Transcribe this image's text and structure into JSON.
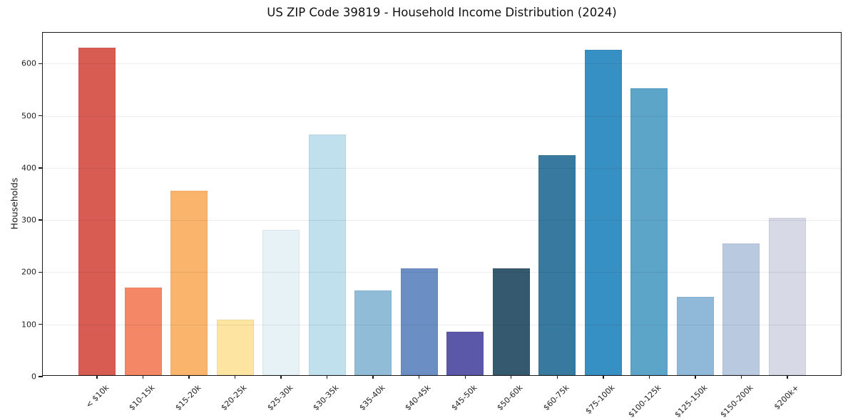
{
  "figure": {
    "background": "#ffffff"
  },
  "chart_data": {
    "type": "bar",
    "title": "US ZIP Code 39819 - Household Income Distribution (2024)",
    "xlabel": "",
    "ylabel": "Households",
    "categories": [
      "< $10k",
      "$10-15k",
      "$15-20k",
      "$20-25k",
      "$25-30k",
      "$30-35k",
      "$35-40k",
      "$40-45k",
      "$45-50k",
      "$50-60k",
      "$60-75k",
      "$75-100k",
      "$100-125k",
      "$125-150k",
      "$150-200k",
      "$200k+"
    ],
    "values": [
      628,
      168,
      353,
      107,
      278,
      461,
      162,
      205,
      83,
      204,
      422,
      623,
      550,
      150,
      252,
      302
    ],
    "bar_colors": [
      "#d85c52",
      "#f48766",
      "#fbb46c",
      "#fde4a0",
      "#e6f2f6",
      "#bfe0ec",
      "#91bcd8",
      "#6b8fc5",
      "#5b58a9",
      "#35596e",
      "#38799f",
      "#3790c3",
      "#5da4c9",
      "#90b8d9",
      "#b9c9e0",
      "#d7d9e7"
    ],
    "ylim": [
      0,
      659
    ],
    "yticks": [
      0,
      100,
      200,
      300,
      400,
      500,
      600
    ],
    "grid": "horizontal",
    "grid_color": "#ebebeb",
    "axis_color": "#1a1a1a",
    "legend": "none",
    "bar_alpha_note": "bars slightly translucent, gridlines faintly visible through bars"
  }
}
